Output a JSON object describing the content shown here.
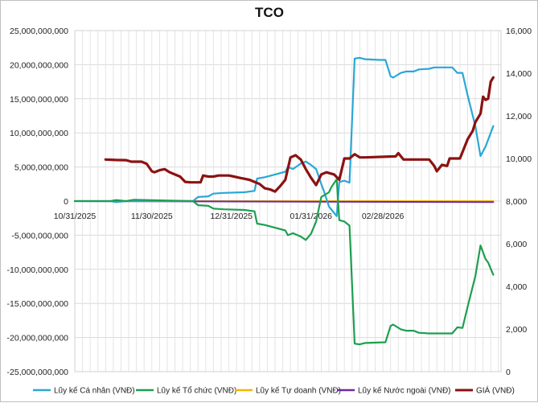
{
  "chart_data": {
    "type": "line",
    "title": "TCO",
    "grid": true,
    "legend_position": "bottom",
    "x_axis": {
      "type": "date",
      "range": [
        "2025-10-31",
        "2026-04-15"
      ],
      "ticks": [
        {
          "date": "2025-10-31",
          "label": "10/31/2025"
        },
        {
          "date": "2025-11-30",
          "label": "11/30/2025"
        },
        {
          "date": "2025-12-31",
          "label": "12/31/2025"
        },
        {
          "date": "2026-01-31",
          "label": "01/31/2026"
        },
        {
          "date": "2026-02-28",
          "label": "02/28/2026"
        }
      ]
    },
    "y_left": {
      "range": [
        -25000000000,
        25000000000
      ],
      "ticks": [
        25000000000,
        20000000000,
        15000000000,
        10000000000,
        5000000000,
        0,
        -5000000000,
        -10000000000,
        -15000000000,
        -20000000000,
        -25000000000
      ],
      "tick_labels": [
        "25,000,000,000",
        "20,000,000,000",
        "15,000,000,000",
        "10,000,000,000",
        "5,000,000,000",
        "0",
        "-5,000,000,000",
        "-10,000,000,000",
        "-15,000,000,000",
        "-20,000,000,000",
        "-25,000,000,000"
      ]
    },
    "y_right": {
      "range": [
        0,
        16000
      ],
      "ticks": [
        16000,
        14000,
        12000,
        10000,
        8000,
        6000,
        4000,
        2000,
        0
      ],
      "tick_labels": [
        "16,000",
        "14,000",
        "12,000",
        "10,000",
        "8,000",
        "6,000",
        "4,000",
        "2,000",
        "0"
      ]
    },
    "series": [
      {
        "name": "Lũy kế Cá nhân (VNĐ)",
        "color": "#2aa7d6",
        "axis": "left",
        "points": [
          [
            "2025-10-31",
            0
          ],
          [
            "2025-11-14",
            0
          ],
          [
            "2025-11-16",
            -150000000
          ],
          [
            "2025-11-20",
            0
          ],
          [
            "2025-12-16",
            0
          ],
          [
            "2025-12-18",
            600000000
          ],
          [
            "2025-12-22",
            700000000
          ],
          [
            "2025-12-24",
            1100000000
          ],
          [
            "2025-12-28",
            1200000000
          ],
          [
            "2026-01-05",
            1300000000
          ],
          [
            "2026-01-09",
            1500000000
          ],
          [
            "2026-01-10",
            3300000000
          ],
          [
            "2026-01-13",
            3500000000
          ],
          [
            "2026-01-17",
            3900000000
          ],
          [
            "2026-01-21",
            4300000000
          ],
          [
            "2026-01-22",
            5000000000
          ],
          [
            "2026-01-24",
            4700000000
          ],
          [
            "2026-01-27",
            5500000000
          ],
          [
            "2026-01-29",
            5800000000
          ],
          [
            "2026-01-31",
            5300000000
          ],
          [
            "2026-02-02",
            4700000000
          ],
          [
            "2026-02-04",
            2500000000
          ],
          [
            "2026-02-05",
            1500000000
          ],
          [
            "2026-02-07",
            -800000000
          ],
          [
            "2026-02-10",
            -2200000000
          ],
          [
            "2026-02-11",
            2800000000
          ],
          [
            "2026-02-13",
            3000000000
          ],
          [
            "2026-02-15",
            2700000000
          ],
          [
            "2026-02-17",
            20900000000
          ],
          [
            "2026-02-19",
            21000000000
          ],
          [
            "2026-02-21",
            20800000000
          ],
          [
            "2026-02-27",
            20700000000
          ],
          [
            "2026-03-01",
            20700000000
          ],
          [
            "2026-03-03",
            18300000000
          ],
          [
            "2026-03-04",
            18100000000
          ],
          [
            "2026-03-07",
            18800000000
          ],
          [
            "2026-03-09",
            19000000000
          ],
          [
            "2026-03-12",
            19000000000
          ],
          [
            "2026-03-14",
            19300000000
          ],
          [
            "2026-03-18",
            19400000000
          ],
          [
            "2026-03-20",
            19600000000
          ],
          [
            "2026-03-27",
            19600000000
          ],
          [
            "2026-03-29",
            18800000000
          ],
          [
            "2026-03-31",
            18800000000
          ],
          [
            "2026-04-02",
            15500000000
          ],
          [
            "2026-04-05",
            11000000000
          ],
          [
            "2026-04-07",
            6600000000
          ],
          [
            "2026-04-09",
            8000000000
          ],
          [
            "2026-04-10",
            9000000000
          ],
          [
            "2026-04-12",
            11000000000
          ]
        ]
      },
      {
        "name": "Lũy kế Tổ chức (VNĐ)",
        "color": "#1e9e50",
        "axis": "left",
        "points": [
          [
            "2025-10-31",
            0
          ],
          [
            "2025-11-14",
            0
          ],
          [
            "2025-11-16",
            150000000
          ],
          [
            "2025-11-20",
            0
          ],
          [
            "2025-11-23",
            200000000
          ],
          [
            "2025-11-28",
            150000000
          ],
          [
            "2025-12-16",
            0
          ],
          [
            "2025-12-18",
            -600000000
          ],
          [
            "2025-12-22",
            -700000000
          ],
          [
            "2025-12-24",
            -1100000000
          ],
          [
            "2025-12-28",
            -1200000000
          ],
          [
            "2026-01-05",
            -1300000000
          ],
          [
            "2026-01-09",
            -1500000000
          ],
          [
            "2026-01-10",
            -3300000000
          ],
          [
            "2026-01-13",
            -3500000000
          ],
          [
            "2026-01-17",
            -3900000000
          ],
          [
            "2026-01-21",
            -4300000000
          ],
          [
            "2026-01-22",
            -5000000000
          ],
          [
            "2026-01-24",
            -4700000000
          ],
          [
            "2026-01-27",
            -5200000000
          ],
          [
            "2026-01-29",
            -5700000000
          ],
          [
            "2026-01-31",
            -4800000000
          ],
          [
            "2026-02-02",
            -3000000000
          ],
          [
            "2026-02-04",
            600000000
          ],
          [
            "2026-02-07",
            1300000000
          ],
          [
            "2026-02-08",
            2100000000
          ],
          [
            "2026-02-10",
            3200000000
          ],
          [
            "2026-02-11",
            -2800000000
          ],
          [
            "2026-02-13",
            -3000000000
          ],
          [
            "2026-02-15",
            -3600000000
          ],
          [
            "2026-02-17",
            -20900000000
          ],
          [
            "2026-02-19",
            -21000000000
          ],
          [
            "2026-02-21",
            -20800000000
          ],
          [
            "2026-03-01",
            -20700000000
          ],
          [
            "2026-03-03",
            -18300000000
          ],
          [
            "2026-03-04",
            -18100000000
          ],
          [
            "2026-03-07",
            -18800000000
          ],
          [
            "2026-03-09",
            -19000000000
          ],
          [
            "2026-03-12",
            -19000000000
          ],
          [
            "2026-03-14",
            -19300000000
          ],
          [
            "2026-03-18",
            -19400000000
          ],
          [
            "2026-03-27",
            -19400000000
          ],
          [
            "2026-03-29",
            -18500000000
          ],
          [
            "2026-03-31",
            -18600000000
          ],
          [
            "2026-04-02",
            -15500000000
          ],
          [
            "2026-04-05",
            -11000000000
          ],
          [
            "2026-04-07",
            -6500000000
          ],
          [
            "2026-04-09",
            -8500000000
          ],
          [
            "2026-04-10",
            -9000000000
          ],
          [
            "2026-04-12",
            -10800000000
          ]
        ]
      },
      {
        "name": "Lũy kế Tự doanh (VNĐ)",
        "color": "#f5b400",
        "axis": "left",
        "points": [
          [
            "2025-10-31",
            0
          ],
          [
            "2026-04-12",
            0
          ]
        ]
      },
      {
        "name": "Lũy kế Nước ngoài (VNĐ)",
        "color": "#6a2aa5",
        "axis": "left",
        "points": [
          [
            "2025-10-31",
            0
          ],
          [
            "2026-04-12",
            -150000000
          ]
        ]
      },
      {
        "name": "GIÁ (VNĐ)",
        "color": "#8b1212",
        "axis": "right",
        "points": [
          [
            "2025-11-12",
            9950
          ],
          [
            "2025-11-16",
            9930
          ],
          [
            "2025-11-20",
            9920
          ],
          [
            "2025-11-22",
            9850
          ],
          [
            "2025-11-26",
            9850
          ],
          [
            "2025-11-28",
            9750
          ],
          [
            "2025-11-30",
            9400
          ],
          [
            "2025-12-01",
            9350
          ],
          [
            "2025-12-03",
            9450
          ],
          [
            "2025-12-05",
            9500
          ],
          [
            "2025-12-07",
            9350
          ],
          [
            "2025-12-09",
            9250
          ],
          [
            "2025-12-11",
            9150
          ],
          [
            "2025-12-13",
            8900
          ],
          [
            "2025-12-15",
            8880
          ],
          [
            "2025-12-19",
            8880
          ],
          [
            "2025-12-20",
            9200
          ],
          [
            "2025-12-22",
            9150
          ],
          [
            "2025-12-24",
            9150
          ],
          [
            "2025-12-26",
            9200
          ],
          [
            "2025-12-30",
            9200
          ],
          [
            "2026-01-01",
            9150
          ],
          [
            "2026-01-03",
            9100
          ],
          [
            "2026-01-05",
            9050
          ],
          [
            "2026-01-07",
            9000
          ],
          [
            "2026-01-09",
            8900
          ],
          [
            "2026-01-11",
            8800
          ],
          [
            "2026-01-13",
            8600
          ],
          [
            "2026-01-15",
            8550
          ],
          [
            "2026-01-17",
            8450
          ],
          [
            "2026-01-19",
            8700
          ],
          [
            "2026-01-21",
            9000
          ],
          [
            "2026-01-23",
            10050
          ],
          [
            "2026-01-25",
            10150
          ],
          [
            "2026-01-27",
            9950
          ],
          [
            "2026-01-29",
            9500
          ],
          [
            "2026-01-31",
            9100
          ],
          [
            "2026-02-02",
            8750
          ],
          [
            "2026-02-04",
            9250
          ],
          [
            "2026-02-06",
            9350
          ],
          [
            "2026-02-09",
            9250
          ],
          [
            "2026-02-11",
            9000
          ],
          [
            "2026-02-13",
            10000
          ],
          [
            "2026-02-15",
            10000
          ],
          [
            "2026-02-17",
            10200
          ],
          [
            "2026-02-19",
            10050
          ],
          [
            "2026-02-21",
            10050
          ],
          [
            "2026-03-05",
            10100
          ],
          [
            "2026-03-06",
            10250
          ],
          [
            "2026-03-08",
            9950
          ],
          [
            "2026-03-12",
            9950
          ],
          [
            "2026-03-18",
            9950
          ],
          [
            "2026-03-20",
            9650
          ],
          [
            "2026-03-21",
            9400
          ],
          [
            "2026-03-23",
            9700
          ],
          [
            "2026-03-25",
            9650
          ],
          [
            "2026-03-26",
            10000
          ],
          [
            "2026-03-30",
            10000
          ],
          [
            "2026-03-31",
            10300
          ],
          [
            "2026-04-02",
            10900
          ],
          [
            "2026-04-04",
            11300
          ],
          [
            "2026-04-05",
            11700
          ],
          [
            "2026-04-07",
            12100
          ],
          [
            "2026-04-08",
            12900
          ],
          [
            "2026-04-09",
            12750
          ],
          [
            "2026-04-10",
            12800
          ],
          [
            "2026-04-11",
            13600
          ],
          [
            "2026-04-12",
            13800
          ]
        ]
      }
    ]
  }
}
